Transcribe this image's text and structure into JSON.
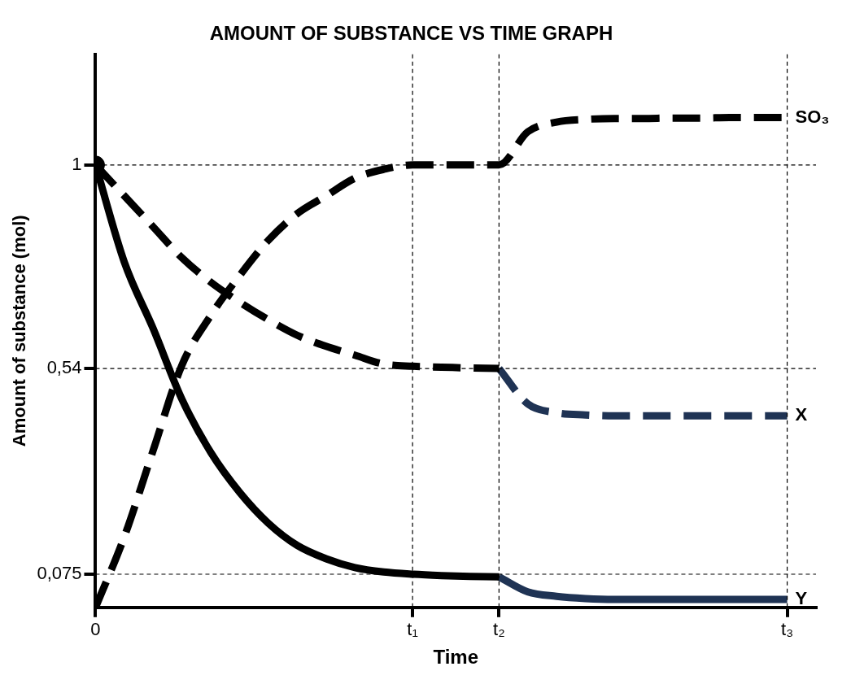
{
  "chart_data": {
    "type": "line",
    "title": "AMOUNT OF SUBSTANCE VS TIME GRAPH",
    "xlabel": "Time",
    "ylabel": "Amount of substance (mol)",
    "categories": [
      "0",
      null,
      null,
      null,
      null,
      null,
      null,
      null,
      null,
      null,
      null,
      "t₁",
      null,
      null,
      "t₂",
      null,
      null,
      null,
      null,
      null,
      null,
      null,
      null,
      null,
      "t₃",
      null
    ],
    "ylim": [
      0,
      1.25
    ],
    "yticks": [
      {
        "value": 0.075,
        "label": "0,075"
      },
      {
        "value": 0.54,
        "label": "0,54"
      },
      {
        "value": 1,
        "label": "1"
      }
    ],
    "grid": false,
    "legend": false,
    "marker": "none",
    "ref_lines": [
      {
        "axis": "y",
        "value": 1,
        "line_style": "dashed"
      },
      {
        "axis": "y",
        "value": 0.54,
        "line_style": "dashed"
      },
      {
        "axis": "y",
        "value": 0.075,
        "line_style": "dashed"
      },
      {
        "axis": "x",
        "value": "t₁",
        "line_style": "dashed"
      },
      {
        "axis": "x",
        "value": "t₂",
        "line_style": "dashed"
      },
      {
        "axis": "x",
        "value": "t₃",
        "line_style": "dashed"
      }
    ],
    "series": [
      {
        "name": "SO₃",
        "color": "#000000",
        "line_style": "dashed",
        "values": [
          0,
          0.16,
          0.355,
          0.548,
          0.66,
          0.75,
          0.83,
          0.89,
          0.93,
          0.97,
          0.99,
          1,
          1,
          1,
          1,
          1.075,
          1.097,
          1.103,
          1.105,
          1.105,
          1.106,
          1.106,
          1.107,
          1.107,
          1.107,
          null
        ]
      },
      {
        "color": "#000000",
        "line_style": "dashed",
        "values": [
          1,
          0.93,
          0.86,
          0.79,
          0.735,
          0.69,
          0.65,
          0.615,
          0.59,
          0.57,
          0.55,
          0.545,
          0.543,
          0.541,
          0.54,
          null,
          null,
          null,
          null,
          null,
          null,
          null,
          null,
          null,
          null,
          null
        ]
      },
      {
        "name": "X",
        "color": "#1f3354",
        "line_style": "dashed",
        "values": [
          null,
          null,
          null,
          null,
          null,
          null,
          null,
          null,
          null,
          null,
          null,
          null,
          null,
          null,
          0.54,
          0.46,
          0.44,
          0.435,
          0.433,
          0.433,
          0.433,
          0.433,
          0.433,
          0.433,
          0.433,
          null
        ]
      },
      {
        "color": "#000000",
        "line_style": "solid",
        "values": [
          1,
          0.78,
          0.63,
          0.47,
          0.35,
          0.26,
          0.19,
          0.14,
          0.11,
          0.09,
          0.08,
          0.075,
          0.072,
          0.07,
          0.069,
          null,
          null,
          null,
          null,
          null,
          null,
          null,
          null,
          null,
          null,
          null
        ]
      },
      {
        "name": "Y",
        "color": "#1f3354",
        "line_style": "solid",
        "values": [
          null,
          null,
          null,
          null,
          null,
          null,
          null,
          null,
          null,
          null,
          null,
          null,
          null,
          null,
          0.069,
          0.035,
          0.025,
          0.02,
          0.018,
          0.018,
          0.018,
          0.018,
          0.018,
          0.018,
          0.018,
          null
        ]
      },
      {
        "type": "scatter",
        "color": "#000000",
        "marker": "circle",
        "x": [
          "0"
        ],
        "values": [
          1
        ]
      }
    ]
  }
}
